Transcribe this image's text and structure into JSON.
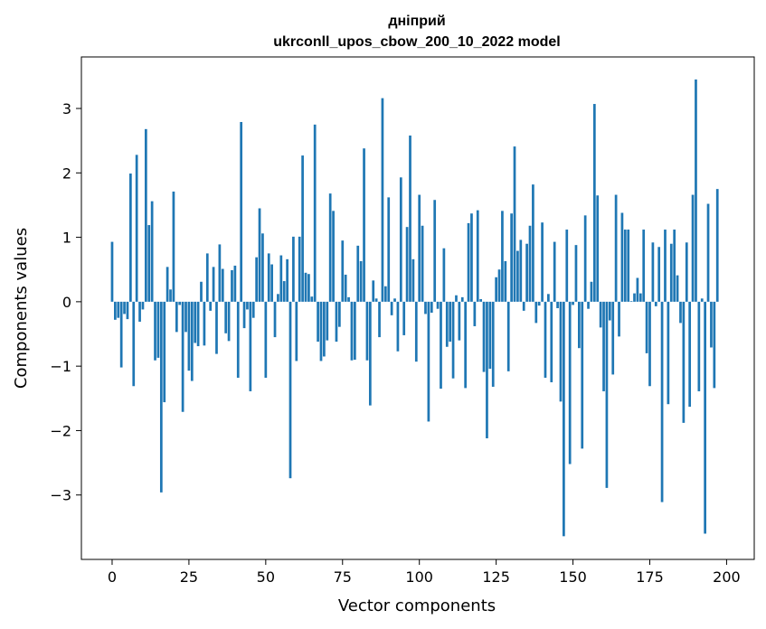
{
  "chart_data": {
    "type": "bar",
    "title": "дніприй",
    "subtitle": "ukrconll_upos_cbow_200_10_2022 model",
    "xlabel": "Vector components",
    "ylabel": "Components values",
    "xlim": [
      -10,
      209
    ],
    "ylim": [
      -4.0,
      3.8
    ],
    "xticks": [
      0,
      25,
      50,
      75,
      100,
      125,
      150,
      175,
      200
    ],
    "yticks": [
      -3,
      -2,
      -1,
      0,
      1,
      2,
      3
    ],
    "grid": false,
    "bar_color": "#1f77b4",
    "series": [
      {
        "values": [
          0.93,
          -0.28,
          -0.25,
          -1.02,
          -0.19,
          -0.27,
          1.99,
          -1.31,
          2.28,
          -0.31,
          -0.12,
          2.68,
          1.19,
          1.56,
          -0.91,
          -0.87,
          -2.96,
          -1.56,
          0.54,
          0.19,
          1.71,
          -0.47,
          -0.05,
          -1.71,
          -0.47,
          -1.07,
          -1.23,
          -0.64,
          -0.69,
          0.31,
          -0.68,
          0.75,
          -0.14,
          0.54,
          -0.81,
          0.89,
          0.51,
          -0.49,
          -0.61,
          0.49,
          0.56,
          -1.18,
          2.79,
          -0.41,
          -0.12,
          -1.39,
          -0.25,
          0.69,
          1.45,
          1.06,
          -1.18,
          0.75,
          0.58,
          -0.55,
          0.12,
          0.72,
          0.32,
          0.66,
          -2.74,
          1.01,
          -0.92,
          1.01,
          2.27,
          0.45,
          0.43,
          0.08,
          2.75,
          -0.62,
          -0.92,
          -0.85,
          -0.6,
          1.68,
          1.41,
          -0.62,
          -0.39,
          0.95,
          0.42,
          0.07,
          -0.91,
          -0.9,
          0.87,
          0.63,
          2.38,
          -0.91,
          -1.61,
          0.33,
          0.05,
          -0.55,
          3.16,
          0.24,
          1.62,
          -0.21,
          0.05,
          -0.77,
          1.93,
          -0.52,
          1.16,
          2.58,
          0.66,
          -0.93,
          1.66,
          1.18,
          -0.19,
          -1.86,
          -0.17,
          1.58,
          -0.11,
          -1.35,
          0.83,
          -0.7,
          -0.62,
          -1.19,
          0.1,
          -0.6,
          0.07,
          -1.34,
          1.22,
          1.37,
          -0.38,
          1.42,
          0.04,
          -1.09,
          -2.12,
          -1.04,
          -1.32,
          0.38,
          0.5,
          1.41,
          0.63,
          -1.08,
          1.37,
          2.41,
          0.79,
          0.96,
          -0.14,
          0.9,
          1.18,
          1.82,
          -0.33,
          -0.06,
          1.23,
          -1.18,
          0.12,
          -1.25,
          0.93,
          -0.1,
          -1.55,
          -3.64,
          1.12,
          -2.52,
          -0.05,
          0.88,
          -0.72,
          -2.28,
          1.34,
          -0.11,
          0.31,
          3.07,
          1.65,
          -0.4,
          -1.39,
          -2.89,
          -0.29,
          -1.13,
          1.66,
          -0.54,
          1.38,
          1.12,
          1.12,
          0.01,
          0.13,
          0.37,
          0.13,
          1.12,
          -0.8,
          -1.31,
          0.92,
          -0.07,
          0.85,
          -3.11,
          1.12,
          -1.59,
          0.9,
          1.12,
          0.41,
          -0.33,
          -1.88,
          0.92,
          -1.63,
          1.66,
          3.45,
          -1.39,
          0.05,
          -3.6,
          1.52,
          -0.71,
          -1.34,
          1.75
        ]
      }
    ]
  }
}
